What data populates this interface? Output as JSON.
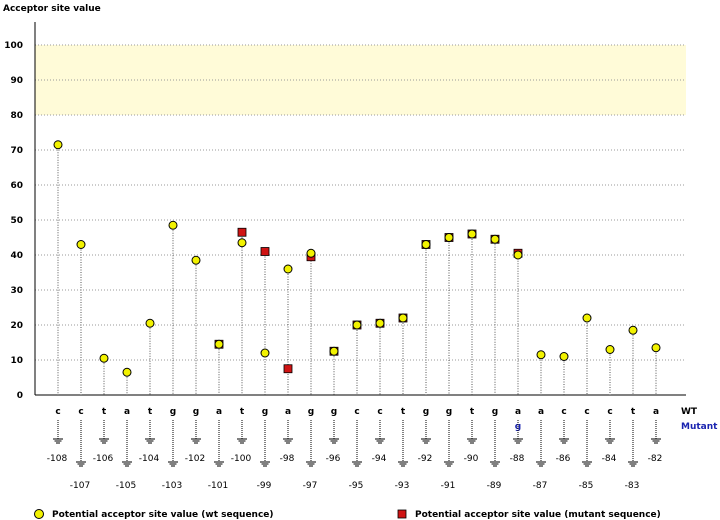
{
  "colors": {
    "wt_marker": "#f2f200",
    "mutant_marker": "#d01414",
    "highlight_band": "#fffbd8",
    "mutant_label": "#1a24b0",
    "grid": "#999999"
  },
  "chart_data": {
    "type": "scatter",
    "title": "Acceptor site value",
    "ylabel": "Acceptor site value",
    "ylim": [
      0,
      100
    ],
    "yticks": [
      0,
      10,
      20,
      30,
      40,
      50,
      60,
      70,
      80,
      90,
      100
    ],
    "highlight_band": [
      80,
      100
    ],
    "grid": true,
    "legend_position": "bottom",
    "row_labels": {
      "wt": "WT",
      "mutant": "Mutant"
    },
    "positions": [
      -108,
      -107,
      -106,
      -105,
      -104,
      -103,
      -102,
      -101,
      -100,
      -99,
      -98,
      -97,
      -96,
      -95,
      -94,
      -93,
      -92,
      -91,
      -90,
      -89,
      -88,
      -87,
      -86,
      -85,
      -84,
      -83,
      -82
    ],
    "position_labels": [
      "-108",
      "-107",
      "-106",
      "-105",
      "-104",
      "-103",
      "-102",
      "-101",
      "-100",
      "-99",
      "-98",
      "-97",
      "-96",
      "-95",
      "-94",
      "-93",
      "-92",
      "-91",
      "-90",
      "-89",
      "-88",
      "-87",
      "-86",
      "-85",
      "-84",
      "-83",
      "-82"
    ],
    "wt_sequence": [
      "c",
      "c",
      "t",
      "a",
      "t",
      "g",
      "g",
      "a",
      "t",
      "g",
      "a",
      "g",
      "g",
      "c",
      "c",
      "t",
      "g",
      "g",
      "t",
      "g",
      "a",
      "a",
      "c",
      "c",
      "c",
      "t",
      "a"
    ],
    "mutant_sequence": [
      "",
      "",
      "",
      "",
      "",
      "",
      "",
      "",
      "",
      "",
      "",
      "",
      "",
      "",
      "",
      "",
      "",
      "",
      "",
      "",
      "g",
      "",
      "",
      "",
      "",
      "",
      ""
    ],
    "series": [
      {
        "name": "Potential acceptor site value (wt sequence)",
        "marker": "circle",
        "values": [
          71.5,
          43,
          10.5,
          6.5,
          20.5,
          48.5,
          38.5,
          14.5,
          43.5,
          12,
          36,
          40.5,
          12.5,
          20,
          20.5,
          22,
          43,
          45,
          46,
          44.5,
          40,
          11.5,
          11,
          22,
          13,
          18.5,
          13.5
        ]
      },
      {
        "name": "Potential acceptor site value (mutant sequence)",
        "marker": "square",
        "values": [
          null,
          null,
          null,
          null,
          null,
          null,
          null,
          14.5,
          46.5,
          41,
          7.5,
          39.5,
          12.5,
          20,
          20.5,
          22,
          43,
          45,
          46,
          44.5,
          40.5,
          null,
          null,
          null,
          null,
          null,
          null
        ]
      }
    ]
  },
  "legend": {
    "wt": "Potential acceptor site value (wt sequence)",
    "mutant": "Potential acceptor site value (mutant sequence)"
  }
}
